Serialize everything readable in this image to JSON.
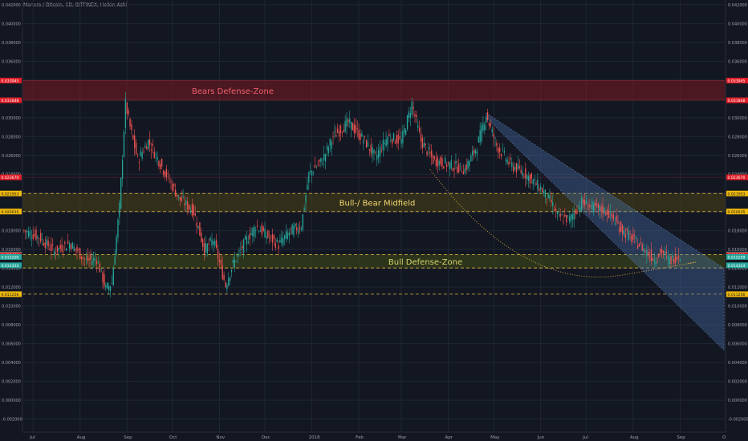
{
  "header": {
    "title": "Monero / Bitcoin, 1D, BITFINEX, Heikin Ashi"
  },
  "colors": {
    "background": "#131722",
    "grid": "#202634",
    "axis_text": "#9aa0ad",
    "up_candle": "#26a69a",
    "down_candle": "#ef5350",
    "bear_zone": "#7a1a22",
    "bear_zone_text": "#f0606a",
    "midfield_zone": "#4a4317",
    "midfield_text": "#f5d76e",
    "bull_zone": "#3d4a18",
    "bull_zone_text": "#d6d36b",
    "channel": "#4e78b8",
    "dashed_line": "#e3b341",
    "red_marker": "#e01e28",
    "yellow_marker": "#f0b90b",
    "green_marker": "#26a69a"
  },
  "chart_data": {
    "type": "candlestick",
    "title": "Monero / Bitcoin, 1D, BITFINEX, Heikin Ashi",
    "x_labels": [
      "Jul",
      "Aug",
      "Sep",
      "Oct",
      "Nov",
      "Dec",
      "2018",
      "Feb",
      "Mar",
      "Apr",
      "May",
      "Jun",
      "Jul",
      "Aug",
      "Sep",
      "O"
    ],
    "y_ticks": [
      "0.042000",
      "0.040000",
      "0.038000",
      "0.036000",
      "0.034000",
      "0.032000",
      "0.030000",
      "0.028000",
      "0.026000",
      "0.024000",
      "0.022000",
      "0.020000",
      "0.018000",
      "0.016000",
      "0.014000",
      "0.012000",
      "0.010000",
      "0.008000",
      "0.006000",
      "0.004000",
      "0.002000",
      "0.000000",
      "-0.002000"
    ],
    "ylim": [
      -0.0034,
      0.0425
    ],
    "grid": true,
    "zones": [
      {
        "label": "Bears Defense-Zone",
        "top": 0.033945,
        "bottom": 0.031848
      },
      {
        "label": "Bull-/ Bear Midfield",
        "top": 0.021953,
        "bottom": 0.020035
      },
      {
        "label": "Bull Defense-Zone",
        "top": 0.015474,
        "bottom": 0.014041
      }
    ],
    "price_markers": [
      {
        "value": 0.033945,
        "label": "0.033945",
        "kind": "red"
      },
      {
        "value": 0.031848,
        "label": "0.031848",
        "kind": "red"
      },
      {
        "value": 0.02367,
        "label": "0.023670",
        "kind": "red"
      },
      {
        "value": 0.021953,
        "label": "0.021953",
        "kind": "yellow"
      },
      {
        "value": 0.020035,
        "label": "0.020035",
        "kind": "yellow"
      },
      {
        "value": 0.015474,
        "label": "0.015474",
        "kind": "green"
      },
      {
        "value": 0.015401,
        "label": "0.015401",
        "kind": "red"
      },
      {
        "value": 0.015209,
        "label": "0.015209",
        "kind": "green"
      },
      {
        "value": 0.014324,
        "label": "0.014324",
        "kind": "green"
      },
      {
        "value": 0.011256,
        "label": "0.011256",
        "kind": "yellow"
      }
    ],
    "price_path": [
      {
        "date": "2017-06-25",
        "price": 0.018
      },
      {
        "date": "2017-07-05",
        "price": 0.0173
      },
      {
        "date": "2017-07-15",
        "price": 0.0158
      },
      {
        "date": "2017-07-25",
        "price": 0.0167
      },
      {
        "date": "2017-08-05",
        "price": 0.0148
      },
      {
        "date": "2017-08-12",
        "price": 0.015
      },
      {
        "date": "2017-08-18",
        "price": 0.0118
      },
      {
        "date": "2017-08-22",
        "price": 0.0125
      },
      {
        "date": "2017-08-27",
        "price": 0.0205
      },
      {
        "date": "2017-08-31",
        "price": 0.0315
      },
      {
        "date": "2017-09-03",
        "price": 0.029
      },
      {
        "date": "2017-09-08",
        "price": 0.0255
      },
      {
        "date": "2017-09-15",
        "price": 0.0275
      },
      {
        "date": "2017-09-25",
        "price": 0.0245
      },
      {
        "date": "2017-10-05",
        "price": 0.0215
      },
      {
        "date": "2017-10-15",
        "price": 0.02
      },
      {
        "date": "2017-10-22",
        "price": 0.016
      },
      {
        "date": "2017-10-28",
        "price": 0.017
      },
      {
        "date": "2017-11-05",
        "price": 0.0122
      },
      {
        "date": "2017-11-10",
        "price": 0.0145
      },
      {
        "date": "2017-11-18",
        "price": 0.0168
      },
      {
        "date": "2017-11-25",
        "price": 0.0185
      },
      {
        "date": "2017-12-02",
        "price": 0.0175
      },
      {
        "date": "2017-12-10",
        "price": 0.0165
      },
      {
        "date": "2017-12-18",
        "price": 0.018
      },
      {
        "date": "2017-12-25",
        "price": 0.0185
      },
      {
        "date": "2017-12-30",
        "price": 0.024
      },
      {
        "date": "2018-01-08",
        "price": 0.0255
      },
      {
        "date": "2018-01-15",
        "price": 0.028
      },
      {
        "date": "2018-01-25",
        "price": 0.0295
      },
      {
        "date": "2018-02-05",
        "price": 0.0275
      },
      {
        "date": "2018-02-12",
        "price": 0.0258
      },
      {
        "date": "2018-02-20",
        "price": 0.028
      },
      {
        "date": "2018-03-01",
        "price": 0.0275
      },
      {
        "date": "2018-03-08",
        "price": 0.0315
      },
      {
        "date": "2018-03-14",
        "price": 0.0275
      },
      {
        "date": "2018-03-22",
        "price": 0.0255
      },
      {
        "date": "2018-04-02",
        "price": 0.025
      },
      {
        "date": "2018-04-12",
        "price": 0.0245
      },
      {
        "date": "2018-04-20",
        "price": 0.027
      },
      {
        "date": "2018-04-26",
        "price": 0.0303
      },
      {
        "date": "2018-05-03",
        "price": 0.027
      },
      {
        "date": "2018-05-12",
        "price": 0.025
      },
      {
        "date": "2018-05-22",
        "price": 0.024
      },
      {
        "date": "2018-06-01",
        "price": 0.0225
      },
      {
        "date": "2018-06-08",
        "price": 0.021
      },
      {
        "date": "2018-06-12",
        "price": 0.0195
      },
      {
        "date": "2018-06-20",
        "price": 0.0192
      },
      {
        "date": "2018-06-28",
        "price": 0.021
      },
      {
        "date": "2018-07-05",
        "price": 0.0205
      },
      {
        "date": "2018-07-15",
        "price": 0.02
      },
      {
        "date": "2018-07-25",
        "price": 0.018
      },
      {
        "date": "2018-08-05",
        "price": 0.0165
      },
      {
        "date": "2018-08-15",
        "price": 0.015
      },
      {
        "date": "2018-08-20",
        "price": 0.0158
      },
      {
        "date": "2018-08-25",
        "price": 0.0148
      },
      {
        "date": "2018-09-01",
        "price": 0.0155
      }
    ],
    "channel": {
      "top_start": {
        "date": "2018-04-26",
        "price": 0.0305
      },
      "top_end": {
        "date": "2018-09-30",
        "price": 0.014
      },
      "bottom_start": {
        "date": "2018-04-26",
        "price": 0.03
      },
      "bottom_end": {
        "date": "2018-09-30",
        "price": 0.0053
      }
    }
  }
}
